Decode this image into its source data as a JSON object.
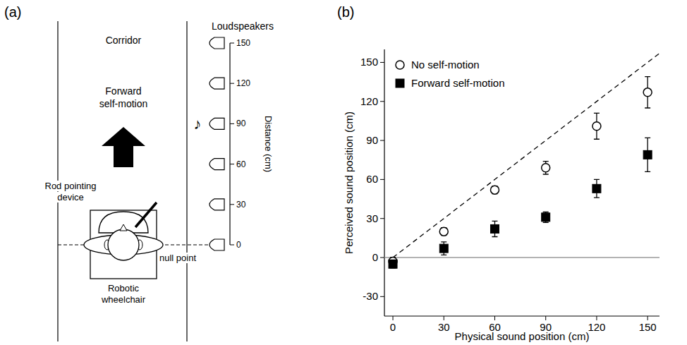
{
  "diagram": {
    "label": "(a)",
    "corridor": "Corridor",
    "motion": "Forward self-motion",
    "speakers_title": "Loudspeakers",
    "distance_axis": {
      "title": "Distance (cm)",
      "ticks": [
        0,
        30,
        60,
        90,
        120,
        150
      ]
    },
    "active_speaker": 90,
    "note": "♪",
    "rod": "Rod pointing device",
    "null_point": "null point",
    "wheelchair": "Robotic wheelchair"
  },
  "chart_data": {
    "type": "scatter",
    "panel_label": "(b)",
    "x_label": "Physical sound position (cm)",
    "y_label": "Perceived sound position (cm)",
    "xlim": [
      -5,
      157
    ],
    "ylim": [
      -45,
      160
    ],
    "xticks": [
      0,
      30,
      60,
      90,
      120,
      150
    ],
    "yticks": [
      -30,
      0,
      30,
      60,
      90,
      120,
      150
    ],
    "legend": "upper left",
    "series": [
      {
        "type": "line",
        "color": "#9a9a9a",
        "line_style": "solid",
        "x": [
          -5,
          157
        ],
        "values": [
          0,
          0
        ]
      },
      {
        "type": "line",
        "color": "#000000",
        "line_style": "dashed",
        "x": [
          0,
          157
        ],
        "values": [
          0,
          157
        ]
      },
      {
        "name": "No self-motion",
        "type": "scatter",
        "color": "#000000",
        "marker": "open-circle",
        "x": [
          0,
          30,
          60,
          90,
          120,
          150
        ],
        "values": [
          -3,
          20,
          52,
          69,
          101,
          127
        ],
        "errors": [
          3,
          3,
          3,
          5,
          10,
          12
        ]
      },
      {
        "name": "Forward self-motion",
        "type": "scatter",
        "color": "#000000",
        "marker": "square",
        "x": [
          0,
          30,
          60,
          90,
          120,
          150
        ],
        "values": [
          -5,
          7,
          22,
          31,
          53,
          79
        ],
        "errors": [
          3,
          5,
          6,
          4,
          7,
          13
        ]
      }
    ]
  }
}
